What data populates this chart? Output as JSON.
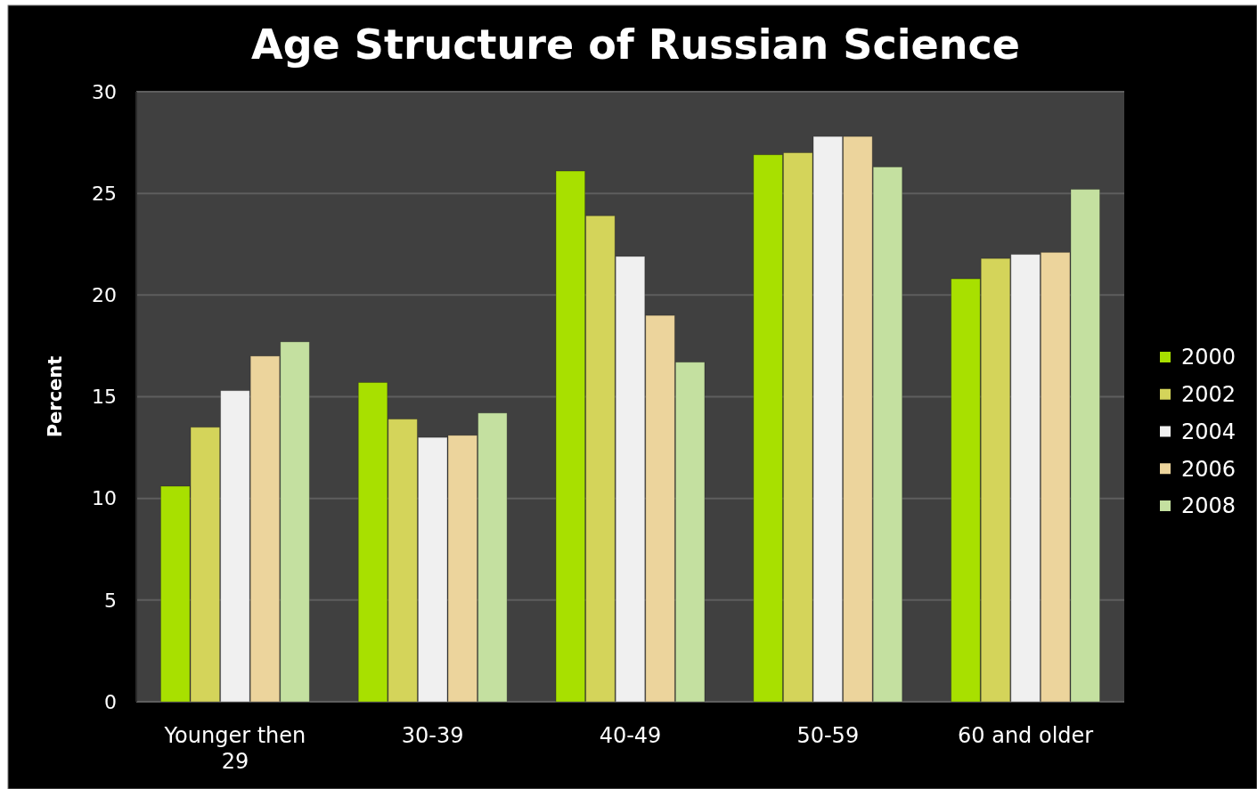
{
  "chart_data": {
    "type": "bar",
    "title": "Age Structure of Russian Science",
    "ylabel": "Percent",
    "categories": [
      "Younger then 29",
      "30-39",
      "40-49",
      "50-59",
      "60 and older"
    ],
    "series": [
      {
        "name": "2000",
        "color": "#a8e000",
        "values": [
          10.6,
          15.7,
          26.1,
          26.9,
          20.8
        ]
      },
      {
        "name": "2002",
        "color": "#d4d45a",
        "values": [
          13.5,
          13.9,
          23.9,
          27.0,
          21.8
        ]
      },
      {
        "name": "2004",
        "color": "#f0f0f0",
        "values": [
          15.3,
          13.0,
          21.9,
          27.8,
          22.0
        ]
      },
      {
        "name": "2006",
        "color": "#ecd49c",
        "values": [
          17.0,
          13.1,
          19.0,
          27.8,
          22.1
        ]
      },
      {
        "name": "2008",
        "color": "#c4e0a0",
        "values": [
          17.7,
          14.2,
          16.7,
          26.3,
          25.2
        ]
      }
    ],
    "ylim": [
      0,
      30
    ],
    "yticks": [
      0,
      5,
      10,
      15,
      20,
      25,
      30
    ],
    "grid": "y",
    "legend": "right"
  }
}
